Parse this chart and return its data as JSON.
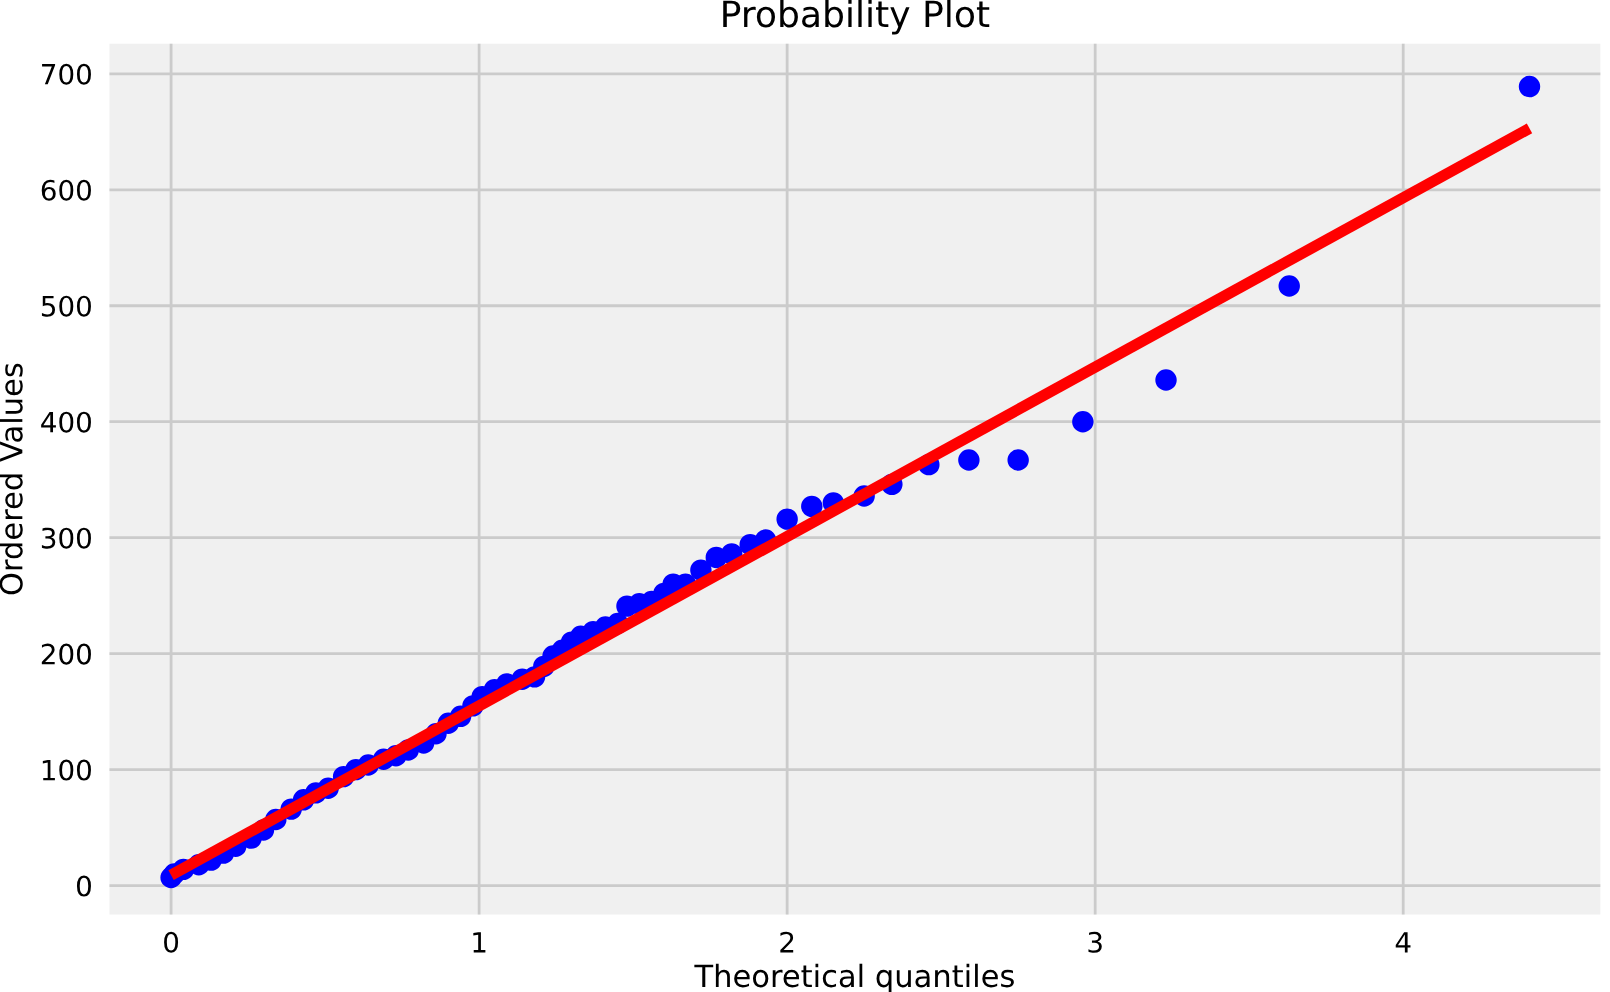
{
  "chart_data": {
    "type": "scatter",
    "title": "Probability Plot",
    "xlabel": "Theoretical quantiles",
    "ylabel": "Ordered Values",
    "xlim": [
      -0.2,
      4.64
    ],
    "ylim": [
      -25,
      726
    ],
    "xticks": [
      0,
      1,
      2,
      3,
      4
    ],
    "yticks": [
      0,
      100,
      200,
      300,
      400,
      500,
      600,
      700
    ],
    "grid": true,
    "marker": "circle",
    "series": [
      {
        "color": "#0000ff",
        "x": [
          0.0,
          0.01,
          0.04,
          0.09,
          0.13,
          0.17,
          0.21,
          0.26,
          0.3,
          0.34,
          0.39,
          0.43,
          0.47,
          0.51,
          0.56,
          0.6,
          0.64,
          0.69,
          0.73,
          0.77,
          0.82,
          0.86,
          0.9,
          0.94,
          0.98,
          1.01,
          1.05,
          1.09,
          1.14,
          1.18,
          1.21,
          1.24,
          1.27,
          1.3,
          1.33,
          1.37,
          1.41,
          1.45,
          1.48,
          1.52,
          1.56,
          1.6,
          1.63,
          1.67,
          1.72,
          1.77,
          1.82,
          1.88,
          1.93,
          2.0,
          2.08,
          2.15,
          2.25,
          2.34,
          2.46,
          2.59,
          2.75,
          2.96,
          3.23,
          3.63,
          4.41
        ],
        "values": [
          7,
          10,
          14,
          18,
          22,
          28,
          34,
          41,
          48,
          57,
          66,
          74,
          80,
          84,
          94,
          100,
          104,
          109,
          112,
          117,
          123,
          131,
          140,
          146,
          155,
          163,
          169,
          174,
          178,
          180,
          189,
          198,
          203,
          210,
          215,
          219,
          223,
          226,
          241,
          243,
          245,
          252,
          260,
          260,
          272,
          283,
          286,
          294,
          298,
          316,
          327,
          330,
          336,
          346,
          363,
          367,
          367,
          400,
          436,
          517,
          689
        ]
      },
      {
        "type": "line",
        "color": "#ff0000",
        "marker": "none",
        "x": [
          0,
          4.41
        ],
        "values": [
          9,
          653
        ]
      }
    ]
  }
}
